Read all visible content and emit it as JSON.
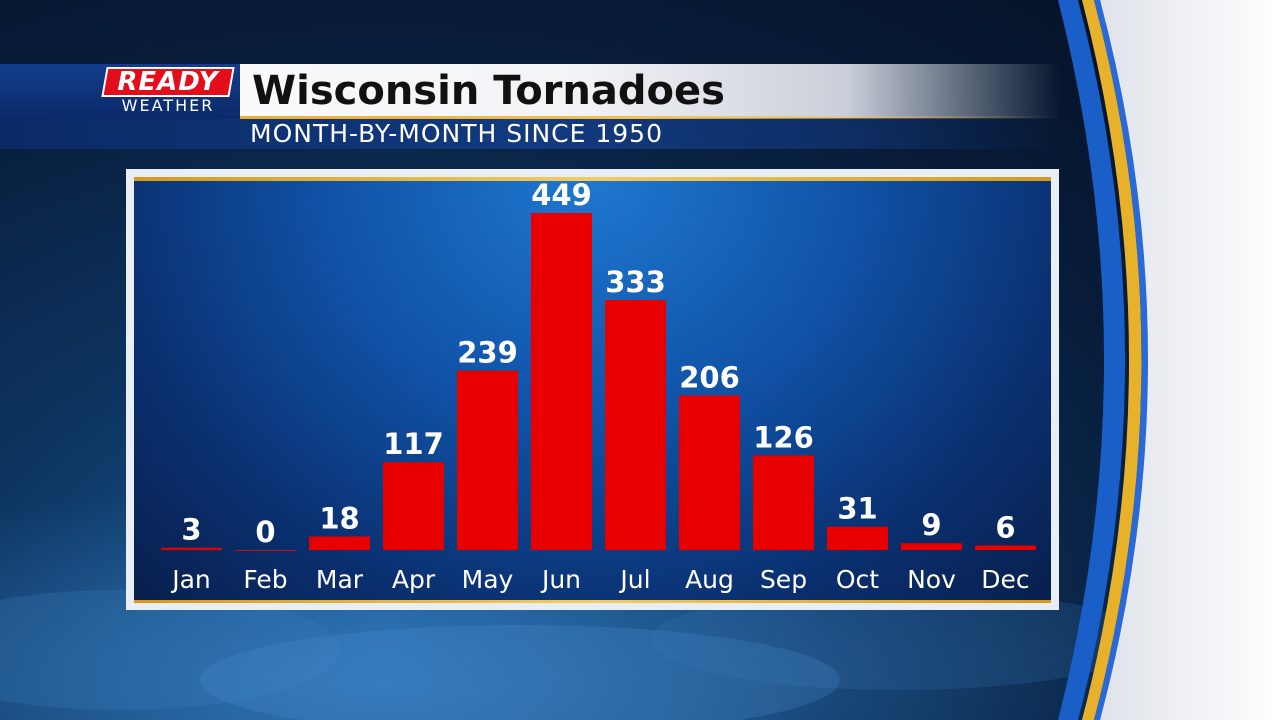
{
  "logo": {
    "top": "READY",
    "bottom": "WEATHER"
  },
  "header": {
    "title": "Wisconsin Tornadoes",
    "subtitle": "MONTH-BY-MONTH SINCE 1950"
  },
  "colors": {
    "bar": "#e80000",
    "accent_gold": "#f2c04a",
    "brand_red": "#e30e1a",
    "brand_blue": "#123d8c"
  },
  "chart_data": {
    "type": "bar",
    "title": "Wisconsin Tornadoes",
    "subtitle": "MONTH-BY-MONTH SINCE 1950",
    "categories": [
      "Jan",
      "Feb",
      "Mar",
      "Apr",
      "May",
      "Jun",
      "Jul",
      "Aug",
      "Sep",
      "Oct",
      "Nov",
      "Dec"
    ],
    "values": [
      3,
      0,
      18,
      117,
      239,
      449,
      333,
      206,
      126,
      31,
      9,
      6
    ],
    "ylim": [
      0,
      449
    ],
    "grid": false,
    "data_labels": true
  }
}
